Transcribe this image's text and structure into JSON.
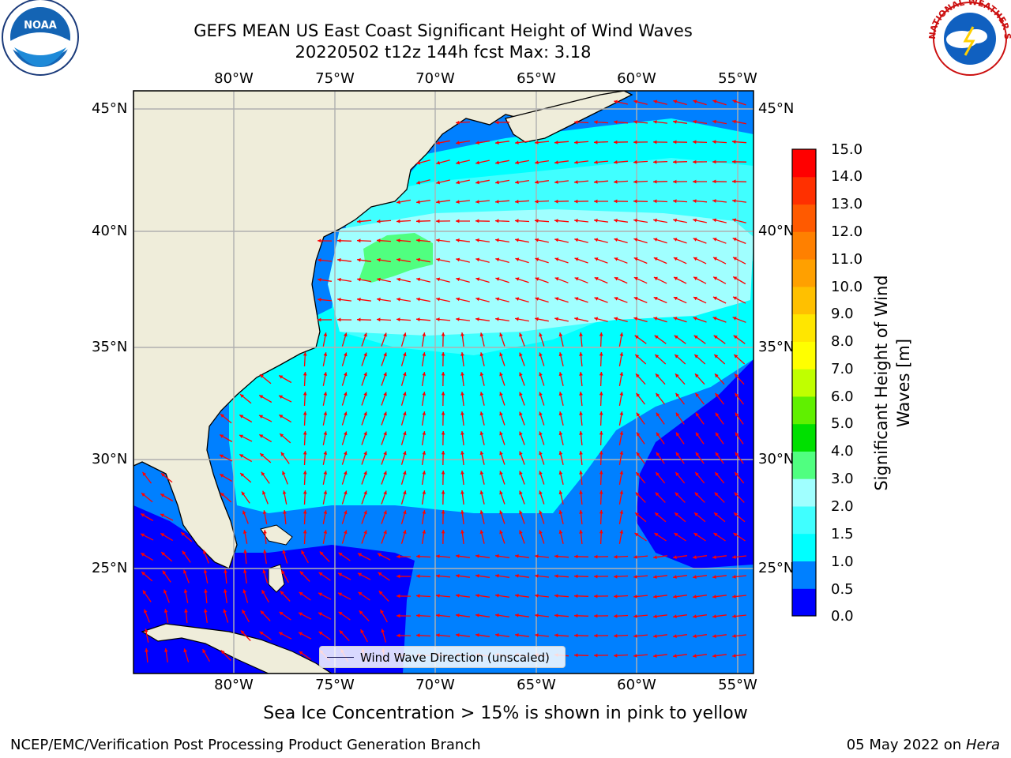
{
  "header": {
    "title_line1": "GEFS MEAN US East Coast Significant Height of Wind Waves",
    "title_line2": "20220502 t12z 144h fcst   Max: 3.18"
  },
  "map": {
    "lon_labels": [
      "80°W",
      "75°W",
      "70°W",
      "65°W",
      "60°W",
      "55°W"
    ],
    "lat_labels": [
      "45°N",
      "40°N",
      "35°N",
      "30°N",
      "25°N"
    ],
    "vector_color": "#ff0000",
    "land_color": "#efedda",
    "grid_color": "#b0b0b0"
  },
  "legend": {
    "label": "Wind Wave Direction (unscaled)"
  },
  "colorbar": {
    "title": "Significant Height of Wind Waves [m]",
    "ticks": [
      "0.0",
      "0.5",
      "1.0",
      "1.5",
      "2.0",
      "3.0",
      "4.0",
      "5.0",
      "6.0",
      "7.0",
      "8.0",
      "9.0",
      "10.0",
      "11.0",
      "12.0",
      "13.0",
      "14.0",
      "15.0"
    ],
    "colors": [
      "#0000ff",
      "#0080ff",
      "#00ffff",
      "#40ffff",
      "#a0ffff",
      "#50ff80",
      "#00e000",
      "#60f000",
      "#c0ff00",
      "#ffff00",
      "#ffe600",
      "#ffc000",
      "#ffa000",
      "#ff8000",
      "#ff5a00",
      "#ff3000",
      "#ff0000"
    ]
  },
  "notes": {
    "ice_note": "Sea Ice Concentration > 15% is shown in pink to yellow",
    "producer": "NCEP/EMC/Verification Post Processing Product Generation Branch",
    "date": "05 May 2022 on",
    "machine": "Hera"
  },
  "logos": {
    "noaa_text": "NOAA",
    "nws_text": "NATIONAL WEATHER SERVICE"
  }
}
